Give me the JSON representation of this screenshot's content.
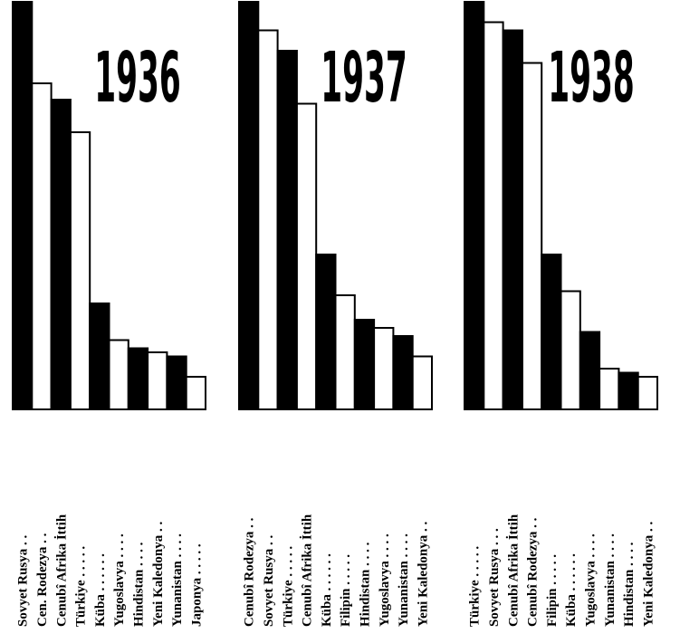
{
  "chart_data": [
    {
      "type": "bar",
      "title": "1936",
      "categories": [
        "Sovyet Rusya",
        "Cen. Rodezya",
        "Cenubî Afrika İttih",
        "Türkiye",
        "Küba",
        "Yugoslavya",
        "Hindistan",
        "Yeni Kaledonya",
        "Yunanistan",
        "Japonya"
      ],
      "labels": [
        "Sovyet Rusya . .",
        "Cen. Rodezya . .",
        "Cenubî Afrika İttih",
        "Türkiye . . . . .",
        "Küba . . . . . .",
        "Yugoslavya . . . .",
        "Hindistan . . . .",
        "Yeni Kaledonya . .",
        "Yunanistan . . . .",
        "Japonya . . . . ."
      ],
      "values": [
        100,
        80,
        76,
        68,
        26,
        17,
        15,
        14,
        13,
        8
      ],
      "fills": [
        "black",
        "white",
        "black",
        "white",
        "black",
        "white",
        "black",
        "white",
        "black",
        "white"
      ]
    },
    {
      "type": "bar",
      "title": "1937",
      "categories": [
        "Cenubî Rodezya",
        "Sovyet Rusya",
        "Türkiye",
        "Cenubî Afrika İttih",
        "Küba",
        "Filipin",
        "Hindistan",
        "Yugoslavya",
        "Yunanistan",
        "Yeni Kaledonya"
      ],
      "labels": [
        "Cenubî Rodezya . .",
        "Sovyet Rusya . .",
        "Türkiye . . . . .",
        "Cenubî Afrika İttih",
        "Küba . . . . . .",
        "Filipin . . . . .",
        "Hindistan . . . .",
        "Yugoslavya . . . .",
        "Yunanistan . . . .",
        "Yeni Kaledonya . ."
      ],
      "values": [
        100,
        93,
        88,
        75,
        38,
        28,
        22,
        20,
        18,
        13
      ],
      "fills": [
        "black",
        "white",
        "black",
        "white",
        "black",
        "white",
        "black",
        "white",
        "black",
        "white"
      ]
    },
    {
      "type": "bar",
      "title": "1938",
      "categories": [
        "Türkiye",
        "Sovyet Rusya",
        "Cenubî Afrika İttih",
        "Cenubî Rodezya",
        "Filipin",
        "Küba",
        "Yugoslavya",
        "Yunanistan",
        "Hindistan",
        "Yeni Kaledonya"
      ],
      "labels": [
        "Türkiye . . . . .",
        "Sovyet Rusya . . .",
        "Cenubî Afrika İttih",
        "Cenubî Rodezya . .",
        "Filipin . . . . .",
        "Küba . . . . . .",
        "Yugoslavya . . . .",
        "Yunanistan . . . .",
        "Hindistan . . . .",
        "Yeni Kaledonya . ."
      ],
      "values": [
        100,
        95,
        93,
        85,
        38,
        29,
        19,
        10,
        9,
        8
      ],
      "fills": [
        "black",
        "white",
        "black",
        "white",
        "black",
        "white",
        "black",
        "white",
        "black",
        "white"
      ]
    }
  ]
}
